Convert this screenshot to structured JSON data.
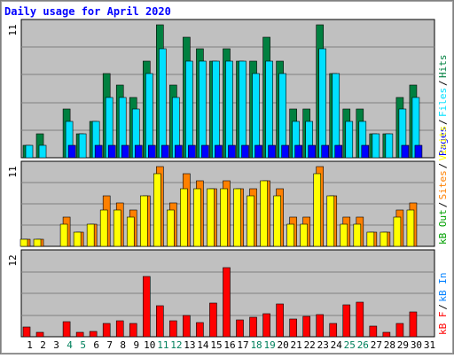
{
  "chart_data": {
    "type": "bar",
    "title": "Daily usage for April 2020",
    "days": [
      "1",
      "2",
      "3",
      "4",
      "5",
      "6",
      "7",
      "8",
      "9",
      "10",
      "11",
      "12",
      "13",
      "14",
      "15",
      "16",
      "17",
      "18",
      "19",
      "20",
      "21",
      "22",
      "23",
      "24",
      "25",
      "26",
      "27",
      "28",
      "29",
      "30",
      "31"
    ],
    "weekend_days": [
      4,
      5,
      11,
      12,
      18,
      19,
      25,
      26
    ],
    "panels": [
      {
        "name": "top",
        "ymax": 11,
        "max_label": "11",
        "right_labels": [
          "Pages",
          "Files",
          "Hits"
        ],
        "series": [
          {
            "name": "Hits",
            "color": "#008040",
            "values": [
              1,
              2,
              0,
              4,
              2,
              3,
              7,
              6,
              5,
              8,
              11,
              6,
              10,
              9,
              8,
              9,
              8,
              8,
              10,
              8,
              4,
              4,
              11,
              7,
              4,
              4,
              2,
              2,
              5,
              6,
              0
            ]
          },
          {
            "name": "Files",
            "color": "#00e0ff",
            "values": [
              1,
              1,
              0,
              3,
              2,
              3,
              5,
              5,
              4,
              7,
              9,
              5,
              8,
              8,
              8,
              8,
              8,
              7,
              8,
              7,
              3,
              3,
              9,
              7,
              3,
              3,
              2,
              2,
              4,
              5,
              0
            ]
          },
          {
            "name": "Pages",
            "color": "#0000ff",
            "values": [
              0,
              0,
              0,
              1,
              0,
              1,
              1,
              1,
              1,
              1,
              1,
              1,
              1,
              1,
              1,
              1,
              1,
              1,
              1,
              1,
              1,
              1,
              1,
              1,
              0,
              1,
              0,
              0,
              1,
              1,
              0
            ]
          }
        ]
      },
      {
        "name": "middle",
        "ymax": 11,
        "max_label": "11",
        "right_labels": [
          "kB Out",
          "Sites",
          "Visits"
        ],
        "series": [
          {
            "name": "Sites",
            "color": "#ff8000",
            "values": [
              1,
              1,
              0,
              4,
              2,
              3,
              7,
              6,
              5,
              7,
              11,
              6,
              10,
              9,
              8,
              9,
              8,
              8,
              9,
              8,
              4,
              4,
              11,
              7,
              4,
              4,
              2,
              2,
              5,
              6,
              0
            ]
          },
          {
            "name": "Visits",
            "color": "#ffff00",
            "values": [
              1,
              1,
              0,
              3,
              2,
              3,
              5,
              5,
              4,
              7,
              10,
              5,
              8,
              8,
              8,
              8,
              8,
              7,
              9,
              7,
              3,
              3,
              10,
              7,
              3,
              3,
              2,
              2,
              4,
              5,
              0
            ]
          },
          {
            "name": "kB Out",
            "color": "#00a000",
            "values": [
              0,
              0,
              0,
              0,
              0,
              0,
              0,
              0,
              0,
              0,
              0,
              0,
              0,
              0,
              0,
              0,
              0,
              0,
              0,
              0,
              0,
              0,
              0,
              0,
              0,
              0,
              0,
              0,
              0,
              0,
              0
            ]
          }
        ]
      },
      {
        "name": "bottom",
        "ymax": 12,
        "max_label": "12",
        "right_labels": [
          "kB F",
          "kB In"
        ],
        "series": [
          {
            "name": "kB F",
            "color": "#ff0000",
            "values": [
              1.4,
              0.7,
              0,
              2.2,
              0.6,
              0.8,
              1.9,
              2.3,
              2.0,
              8.9,
              4.5,
              2.4,
              3.1,
              2.1,
              4.9,
              10.2,
              2.5,
              2.9,
              3.4,
              4.8,
              2.6,
              3.0,
              3.2,
              1.9,
              4.7,
              5.1,
              1.6,
              0.6,
              2.0,
              3.7,
              0
            ]
          },
          {
            "name": "kB In",
            "color": "#0080ff",
            "values": [
              0,
              0,
              0,
              0,
              0,
              0,
              0,
              0,
              0,
              0,
              0,
              0,
              0,
              0,
              0,
              0,
              0,
              0,
              0,
              0,
              0,
              0,
              0,
              0,
              0,
              0,
              0,
              0,
              0,
              0,
              0
            ]
          }
        ]
      }
    ]
  },
  "colors": {
    "title": "#0000ff",
    "background": "#c0c0c0",
    "weekday_label": "#000000",
    "weekend_label": "#00805c",
    "separator": "#000000"
  }
}
